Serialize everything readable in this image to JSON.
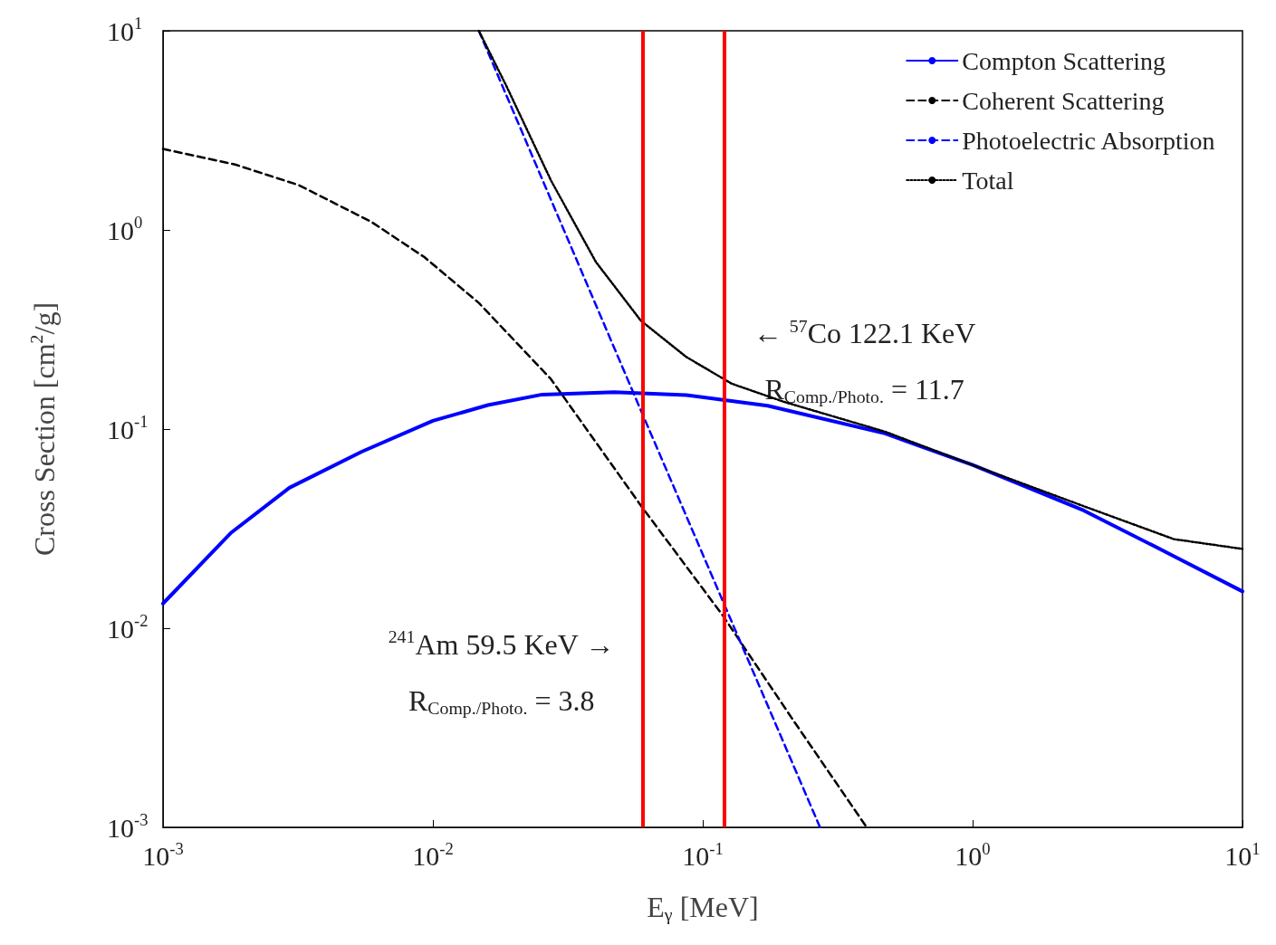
{
  "chart_data": {
    "type": "line",
    "xlabel": "E$_{γ}$ [MeV]",
    "ylabel": "Cross Section [cm$^{2}$/g]",
    "log": "xy",
    "grid": false,
    "legend": "top right",
    "marker": "none",
    "xlim": [
      0.001,
      10
    ],
    "ylim": [
      0.001,
      10
    ],
    "xticks": [
      {
        "value": 0.001,
        "label": "10$^{-3}$"
      },
      {
        "value": 0.01,
        "label": "10$^{-2}$"
      },
      {
        "value": 0.1,
        "label": "10$^{-1}$"
      },
      {
        "value": 1,
        "label": "10$^{0}$"
      },
      {
        "value": 10,
        "label": "10$^{1}$"
      }
    ],
    "yticks": [
      {
        "value": 0.001,
        "label": "10$^{-3}$"
      },
      {
        "value": 0.01,
        "label": "10$^{-2}$"
      },
      {
        "value": 0.1,
        "label": "10$^{-1}$"
      },
      {
        "value": 1,
        "label": "10$^{0}$"
      },
      {
        "value": 10,
        "label": "10$^{1}$"
      }
    ],
    "series": [
      {
        "name": "Compton Scattering",
        "color": "#0000ff",
        "line_style": "solid",
        "x": [
          0.001,
          0.00178,
          0.00294,
          0.00545,
          0.01,
          0.016,
          0.0254,
          0.047,
          0.087,
          0.174,
          0.474,
          1,
          2.58,
          5.57,
          10
        ],
        "values": [
          0.0133,
          0.03,
          0.0507,
          0.077,
          0.11,
          0.132,
          0.149,
          0.153,
          0.148,
          0.131,
          0.095,
          0.066,
          0.039,
          0.023,
          0.0153
        ]
      },
      {
        "name": "Coherent Scattering",
        "color": "#000000",
        "line_style": "dashed",
        "x": [
          0.001,
          0.00185,
          0.00318,
          0.0059,
          0.0093,
          0.0148,
          0.0274,
          0.0592,
          0.118,
          0.218,
          0.405
        ],
        "values": [
          2.55,
          2.13,
          1.68,
          1.1,
          0.73,
          0.43,
          0.178,
          0.041,
          0.0117,
          0.0034,
          0.001
        ]
      },
      {
        "name": "Photoelectric Absorption",
        "color": "#0000ff",
        "line_style": "dashed",
        "x": [
          0.0148,
          0.059,
          0.272
        ],
        "values": [
          10,
          0.124,
          0.001
        ]
      },
      {
        "name": "Total",
        "color": "#000000",
        "line_style": "dotted",
        "x": [
          0.0148,
          0.0187,
          0.0274,
          0.0402,
          0.059,
          0.087,
          0.128,
          0.2,
          0.474,
          1,
          2.58,
          5.57,
          10
        ],
        "values": [
          10,
          5.3,
          1.77,
          0.69,
          0.35,
          0.23,
          0.169,
          0.137,
          0.097,
          0.066,
          0.041,
          0.028,
          0.025
        ]
      }
    ],
    "ref_lines": [
      {
        "axis": "x",
        "value": 0.0595,
        "label": "$^{241}$Am 59.5 KeV →",
        "color": "#ff0000"
      },
      {
        "axis": "x",
        "value": 0.1221,
        "label": "← $^{57}$Co 122.1 KeV",
        "color": "#ff0000"
      }
    ],
    "annotations": [
      "R$_{Comp./Photo.}$ = 3.8",
      "R$_{Comp./Photo.}$ = 11.7"
    ]
  }
}
